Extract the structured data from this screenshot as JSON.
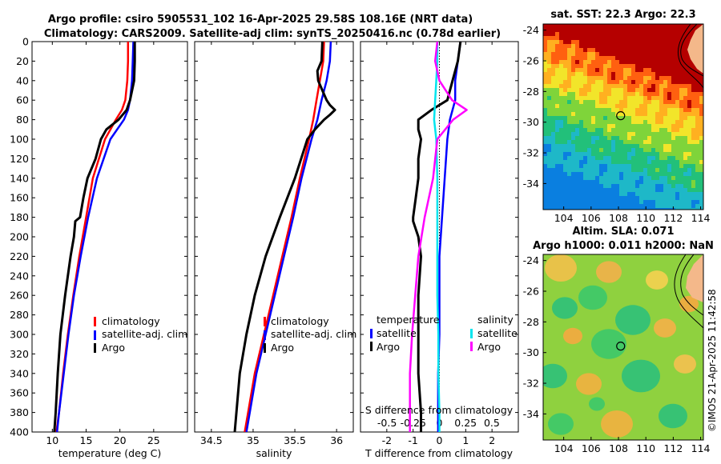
{
  "title_line1": "Argo profile: csiro 5905531_102 16-Apr-2025 29.58S 108.16E (NRT data)",
  "title_line2": "Climatology: CARS2009. Satellite-adj clim: synTS_20250416.nc (0.78d earlier)",
  "copyright": "©IMOS 21-Apr-2025 11:42:58",
  "colors": {
    "climatology": "#ff0000",
    "satellite": "#0000ff",
    "argo": "#000000",
    "cyan": "#00e5ee",
    "magenta": "#ff00ff"
  },
  "chart_data": [
    {
      "type": "line",
      "name": "temperature",
      "xlabel": "temperature (deg C)",
      "ylabel": "",
      "xlim": [
        7,
        30
      ],
      "ylim": [
        400,
        0
      ],
      "xticks": [
        "10",
        "15",
        "20",
        "25"
      ],
      "yticks": [
        "0",
        "20",
        "40",
        "60",
        "80",
        "100",
        "120",
        "140",
        "160",
        "180",
        "200",
        "220",
        "240",
        "260",
        "280",
        "300",
        "320",
        "340",
        "360",
        "380",
        "400"
      ],
      "legend": [
        "climatology",
        "satellite-adj. clim",
        "Argo"
      ],
      "series": [
        {
          "name": "climatology",
          "depth": [
            0,
            20,
            40,
            60,
            70,
            80,
            100,
            140,
            180,
            220,
            260,
            300,
            340,
            380,
            400
          ],
          "values": [
            21.2,
            21.2,
            21.1,
            20.8,
            20.3,
            19.4,
            17.8,
            16.0,
            15.0,
            14.0,
            13.1,
            12.3,
            11.6,
            11.0,
            10.6
          ]
        },
        {
          "name": "satellite-adj. clim",
          "depth": [
            0,
            20,
            40,
            60,
            70,
            80,
            100,
            140,
            180,
            220,
            260,
            300,
            340,
            380,
            400
          ],
          "values": [
            22.0,
            21.9,
            21.8,
            21.5,
            21.2,
            20.6,
            18.6,
            16.6,
            15.3,
            14.2,
            13.2,
            12.4,
            11.7,
            11.0,
            10.7
          ]
        },
        {
          "name": "Argo",
          "depth": [
            0,
            20,
            40,
            60,
            70,
            80,
            90,
            100,
            120,
            140,
            160,
            180,
            184,
            200,
            220,
            260,
            300,
            340,
            380,
            400
          ],
          "values": [
            22.2,
            22.2,
            22.1,
            21.5,
            21.0,
            19.8,
            18.0,
            17.2,
            16.4,
            15.2,
            14.6,
            14.1,
            13.4,
            13.2,
            12.7,
            11.9,
            11.2,
            10.8,
            10.5,
            10.3
          ]
        }
      ]
    },
    {
      "type": "line",
      "name": "salinity",
      "xlabel": "salinity",
      "xlim": [
        34.3,
        36.2
      ],
      "ylim": [
        400,
        0
      ],
      "xticks": [
        "34.5",
        "35",
        "35.5",
        "36"
      ],
      "legend": [
        "climatology",
        "satellite-adj. clim",
        "Argo"
      ],
      "series": [
        {
          "name": "climatology",
          "depth": [
            0,
            20,
            40,
            60,
            80,
            100,
            140,
            180,
            220,
            260,
            300,
            340,
            380,
            400
          ],
          "values": [
            35.85,
            35.84,
            35.8,
            35.76,
            35.72,
            35.67,
            35.56,
            35.46,
            35.35,
            35.24,
            35.13,
            35.02,
            34.94,
            34.9
          ]
        },
        {
          "name": "satellite-adj. clim",
          "depth": [
            0,
            20,
            40,
            60,
            80,
            100,
            140,
            180,
            220,
            260,
            300,
            340,
            380,
            400
          ],
          "values": [
            35.93,
            35.92,
            35.88,
            35.82,
            35.77,
            35.7,
            35.58,
            35.48,
            35.37,
            35.26,
            35.15,
            35.04,
            34.96,
            34.92
          ]
        },
        {
          "name": "Argo",
          "depth": [
            0,
            20,
            30,
            40,
            50,
            60,
            65,
            70,
            75,
            80,
            90,
            100,
            140,
            180,
            220,
            260,
            300,
            340,
            380,
            400
          ],
          "values": [
            35.83,
            35.82,
            35.77,
            35.78,
            35.83,
            35.88,
            35.92,
            35.98,
            35.92,
            35.85,
            35.74,
            35.65,
            35.5,
            35.32,
            35.15,
            35.02,
            34.92,
            34.84,
            34.8,
            34.78
          ]
        }
      ]
    },
    {
      "type": "line",
      "name": "difference",
      "xlabel": "T difference from climatology",
      "xlabel_top": "S difference from climatology",
      "xlim": [
        -3,
        3
      ],
      "ylim": [
        400,
        0
      ],
      "xticks": [
        "-2",
        "-1",
        "0",
        "1",
        "2"
      ],
      "xticks_top": [
        "-0.5",
        "-0.25",
        "0",
        "0.25",
        "0.5"
      ],
      "legend_temperature_title": "temperature",
      "legend_salinity_title": "salinity",
      "legend_temperature": [
        "satellite",
        "Argo"
      ],
      "legend_salinity": [
        "satellite",
        "Argo"
      ],
      "series": [
        {
          "name": "T satellite",
          "depth": [
            0,
            20,
            40,
            60,
            80,
            100,
            140,
            180,
            220,
            260,
            300,
            340,
            380,
            400
          ],
          "values": [
            0.8,
            0.7,
            0.6,
            0.6,
            0.4,
            0.3,
            0.2,
            0.1,
            0.0,
            0.0,
            0.0,
            -0.05,
            -0.05,
            -0.05
          ]
        },
        {
          "name": "T Argo",
          "depth": [
            0,
            20,
            40,
            60,
            70,
            80,
            90,
            100,
            120,
            140,
            160,
            180,
            184,
            200,
            220,
            260,
            300,
            340,
            380,
            400
          ],
          "values": [
            0.8,
            0.7,
            0.5,
            0.3,
            -0.3,
            -0.8,
            -0.8,
            -0.7,
            -0.8,
            -0.8,
            -0.9,
            -1.0,
            -1.0,
            -0.8,
            -0.7,
            -0.8,
            -0.8,
            -0.8,
            -0.7,
            -0.7
          ]
        },
        {
          "name": "S satellite",
          "depth": [
            0,
            20,
            40,
            60,
            80,
            100,
            140,
            180,
            220,
            260,
            300,
            340,
            380,
            400
          ],
          "values": [
            -0.02,
            -0.02,
            -0.03,
            -0.04,
            -0.05,
            -0.03,
            -0.02,
            -0.02,
            -0.02,
            -0.02,
            -0.01,
            -0.01,
            0.0,
            0.0
          ]
        },
        {
          "name": "S Argo",
          "depth": [
            0,
            20,
            40,
            60,
            70,
            80,
            100,
            140,
            180,
            220,
            260,
            300,
            340,
            380,
            400
          ],
          "values": [
            -0.02,
            -0.04,
            0.0,
            0.12,
            0.26,
            0.13,
            -0.02,
            -0.06,
            -0.14,
            -0.2,
            -0.23,
            -0.26,
            -0.28,
            -0.28,
            -0.28
          ]
        }
      ]
    },
    {
      "type": "heatmap",
      "name": "sst_map",
      "title": "sat. SST: 22.3 Argo: 22.3",
      "xticks": [
        "104",
        "106",
        "108",
        "110",
        "112",
        "114"
      ],
      "yticks": [
        "-24",
        "-26",
        "-28",
        "-30",
        "-32",
        "-34"
      ],
      "xlim": [
        102.5,
        114.2
      ],
      "ylim": [
        -35.7,
        -23.6
      ],
      "marker": {
        "lon": 108.16,
        "lat": -29.58
      }
    },
    {
      "type": "heatmap",
      "name": "sla_map",
      "title_line1": "Altim. SLA: 0.071",
      "title_line2": "Argo h1000: 0.011 h2000: NaN",
      "xticks": [
        "104",
        "106",
        "108",
        "110",
        "112",
        "114"
      ],
      "yticks": [
        "-24",
        "-26",
        "-28",
        "-30",
        "-32",
        "-34"
      ],
      "xlim": [
        102.5,
        114.2
      ],
      "ylim": [
        -35.7,
        -23.6
      ],
      "marker": {
        "lon": 108.16,
        "lat": -29.58
      }
    }
  ]
}
